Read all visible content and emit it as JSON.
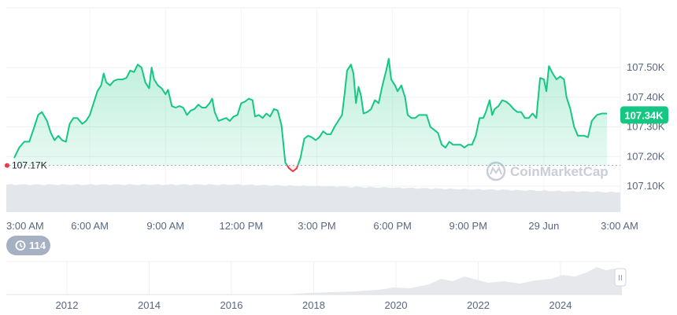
{
  "chart_data": {
    "type": "area",
    "title": "",
    "xlabel": "",
    "ylabel": "",
    "ylim": [
      107020,
      107610
    ],
    "y_ticks": [
      {
        "value": 107500,
        "label": "107.50K"
      },
      {
        "value": 107400,
        "label": "107.40K"
      },
      {
        "value": 107300,
        "label": "107.30K"
      },
      {
        "value": 107200,
        "label": "107.20K"
      },
      {
        "value": 107100,
        "label": "107.10K"
      }
    ],
    "x_ticks": [
      {
        "hours": 0,
        "label": "3:00 AM"
      },
      {
        "hours": 3,
        "label": "6:00 AM"
      },
      {
        "hours": 6,
        "label": "9:00 AM"
      },
      {
        "hours": 9,
        "label": "12:00 PM"
      },
      {
        "hours": 12,
        "label": "3:00 PM"
      },
      {
        "hours": 15,
        "label": "6:00 PM"
      },
      {
        "hours": 18,
        "label": "9:00 PM"
      },
      {
        "hours": 21,
        "label": "29 Jun"
      },
      {
        "hours": 24,
        "label": "3:00 AM"
      }
    ],
    "reference_line": {
      "value": 107170,
      "label": "107.17K"
    },
    "current_price": {
      "value": 107340,
      "label": "107.34K"
    },
    "grid": true,
    "series": [
      {
        "values": [
          [
            0.0,
            107195
          ],
          [
            0.2,
            107230
          ],
          [
            0.4,
            107250
          ],
          [
            0.6,
            107250
          ],
          [
            0.8,
            107300
          ],
          [
            0.95,
            107340
          ],
          [
            1.1,
            107350
          ],
          [
            1.3,
            107320
          ],
          [
            1.45,
            107280
          ],
          [
            1.6,
            107255
          ],
          [
            1.75,
            107270
          ],
          [
            1.9,
            107255
          ],
          [
            2.05,
            107250
          ],
          [
            2.2,
            107310
          ],
          [
            2.35,
            107330
          ],
          [
            2.5,
            107330
          ],
          [
            2.7,
            107310
          ],
          [
            2.85,
            107320
          ],
          [
            3.0,
            107340
          ],
          [
            3.15,
            107380
          ],
          [
            3.3,
            107420
          ],
          [
            3.45,
            107440
          ],
          [
            3.55,
            107480
          ],
          [
            3.65,
            107450
          ],
          [
            3.8,
            107440
          ],
          [
            3.95,
            107455
          ],
          [
            4.1,
            107460
          ],
          [
            4.3,
            107460
          ],
          [
            4.45,
            107465
          ],
          [
            4.6,
            107490
          ],
          [
            4.75,
            107485
          ],
          [
            4.9,
            107510
          ],
          [
            5.05,
            107500
          ],
          [
            5.2,
            107450
          ],
          [
            5.35,
            107430
          ],
          [
            5.45,
            107500
          ],
          [
            5.55,
            107460
          ],
          [
            5.7,
            107440
          ],
          [
            5.85,
            107430
          ],
          [
            6.0,
            107410
          ],
          [
            6.1,
            107425
          ],
          [
            6.25,
            107370
          ],
          [
            6.4,
            107365
          ],
          [
            6.55,
            107370
          ],
          [
            6.7,
            107365
          ],
          [
            6.85,
            107340
          ],
          [
            7.0,
            107355
          ],
          [
            7.15,
            107360
          ],
          [
            7.3,
            107375
          ],
          [
            7.45,
            107365
          ],
          [
            7.6,
            107365
          ],
          [
            7.75,
            107380
          ],
          [
            7.85,
            107395
          ],
          [
            7.95,
            107350
          ],
          [
            8.1,
            107320
          ],
          [
            8.25,
            107325
          ],
          [
            8.4,
            107330
          ],
          [
            8.55,
            107320
          ],
          [
            8.7,
            107335
          ],
          [
            8.85,
            107340
          ],
          [
            9.0,
            107380
          ],
          [
            9.15,
            107385
          ],
          [
            9.3,
            107395
          ],
          [
            9.45,
            107390
          ],
          [
            9.55,
            107335
          ],
          [
            9.7,
            107340
          ],
          [
            9.85,
            107330
          ],
          [
            10.0,
            107345
          ],
          [
            10.15,
            107335
          ],
          [
            10.3,
            107360
          ],
          [
            10.45,
            107355
          ],
          [
            10.6,
            107305
          ],
          [
            10.75,
            107180
          ],
          [
            10.9,
            107160
          ],
          [
            11.05,
            107150
          ],
          [
            11.2,
            107160
          ],
          [
            11.35,
            107195
          ],
          [
            11.5,
            107260
          ],
          [
            11.65,
            107270
          ],
          [
            11.8,
            107265
          ],
          [
            11.95,
            107255
          ],
          [
            12.1,
            107265
          ],
          [
            12.25,
            107285
          ],
          [
            12.4,
            107275
          ],
          [
            12.55,
            107275
          ],
          [
            12.7,
            107300
          ],
          [
            12.85,
            107320
          ],
          [
            13.0,
            107340
          ],
          [
            13.1,
            107410
          ],
          [
            13.2,
            107490
          ],
          [
            13.35,
            107510
          ],
          [
            13.45,
            107480
          ],
          [
            13.55,
            107380
          ],
          [
            13.65,
            107435
          ],
          [
            13.75,
            107405
          ],
          [
            13.85,
            107345
          ],
          [
            14.0,
            107350
          ],
          [
            14.15,
            107360
          ],
          [
            14.3,
            107390
          ],
          [
            14.45,
            107380
          ],
          [
            14.6,
            107440
          ],
          [
            14.75,
            107490
          ],
          [
            14.85,
            107530
          ],
          [
            14.95,
            107460
          ],
          [
            15.1,
            107440
          ],
          [
            15.2,
            107420
          ],
          [
            15.35,
            107440
          ],
          [
            15.5,
            107400
          ],
          [
            15.6,
            107340
          ],
          [
            15.75,
            107330
          ],
          [
            15.9,
            107330
          ],
          [
            16.05,
            107340
          ],
          [
            16.2,
            107340
          ],
          [
            16.35,
            107340
          ],
          [
            16.5,
            107300
          ],
          [
            16.65,
            107290
          ],
          [
            16.8,
            107280
          ],
          [
            16.95,
            107240
          ],
          [
            17.1,
            107230
          ],
          [
            17.25,
            107250
          ],
          [
            17.4,
            107240
          ],
          [
            17.55,
            107240
          ],
          [
            17.7,
            107240
          ],
          [
            17.85,
            107230
          ],
          [
            18.0,
            107240
          ],
          [
            18.15,
            107240
          ],
          [
            18.3,
            107270
          ],
          [
            18.45,
            107330
          ],
          [
            18.6,
            107330
          ],
          [
            18.7,
            107350
          ],
          [
            18.85,
            107390
          ],
          [
            18.95,
            107340
          ],
          [
            19.05,
            107360
          ],
          [
            19.2,
            107370
          ],
          [
            19.35,
            107390
          ],
          [
            19.5,
            107385
          ],
          [
            19.65,
            107375
          ],
          [
            19.8,
            107360
          ],
          [
            19.95,
            107350
          ],
          [
            20.1,
            107350
          ],
          [
            20.25,
            107330
          ],
          [
            20.4,
            107330
          ],
          [
            20.55,
            107345
          ],
          [
            20.7,
            107330
          ],
          [
            20.85,
            107465
          ],
          [
            21.0,
            107460
          ],
          [
            21.1,
            107420
          ],
          [
            21.2,
            107505
          ],
          [
            21.35,
            107480
          ],
          [
            21.5,
            107460
          ],
          [
            21.65,
            107470
          ],
          [
            21.8,
            107460
          ],
          [
            21.9,
            107400
          ],
          [
            22.05,
            107360
          ],
          [
            22.2,
            107300
          ],
          [
            22.35,
            107270
          ],
          [
            22.45,
            107270
          ],
          [
            22.6,
            107270
          ],
          [
            22.75,
            107265
          ],
          [
            22.9,
            107320
          ],
          [
            23.1,
            107340
          ],
          [
            23.3,
            107345
          ],
          [
            23.5,
            107345
          ]
        ]
      }
    ],
    "brush": {
      "x_ticks": [
        "2012",
        "2014",
        "2016",
        "2018",
        "2020",
        "2022",
        "2024"
      ],
      "handle_label": "II",
      "history_badge": "114"
    },
    "colors": {
      "up": "#16c784",
      "down": "#ea3943",
      "tick": "#58667e",
      "grid": "#eef0f3",
      "volume": "#e3e6ea"
    },
    "watermark": "CoinMarketCap"
  }
}
